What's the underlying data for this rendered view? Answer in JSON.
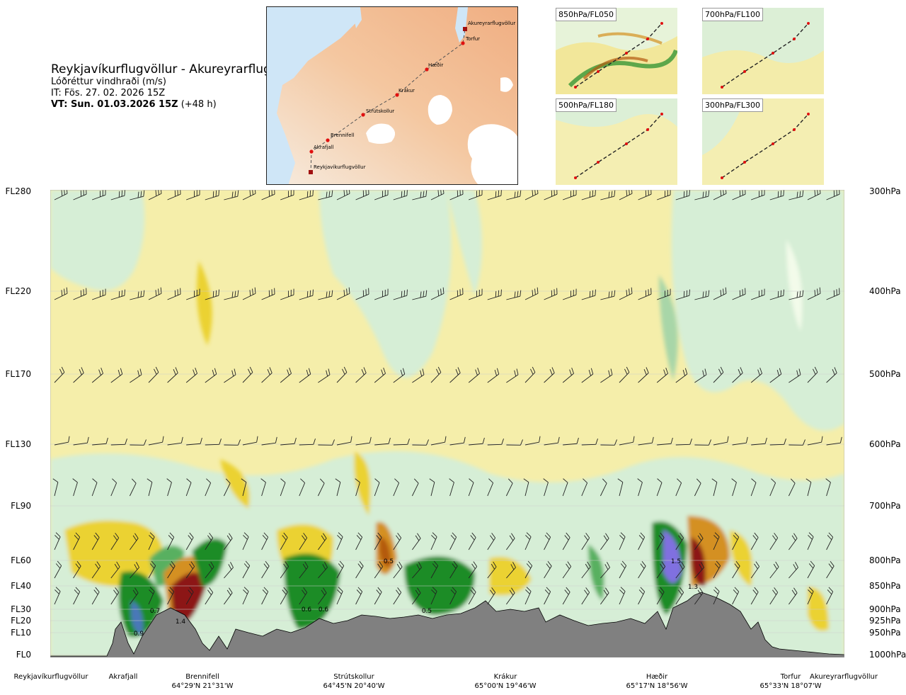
{
  "header": {
    "route": "Reykjavíkurflugvöllur - Akureyrarflugvöllur",
    "quantity": "Lóðréttur vindhraði (m/s)",
    "issued": "IT: Fös. 27. 02. 2026 15Z",
    "valid_bold": "VT: Sun. 01.03.2026 15Z",
    "valid_lead": " (+48 h)"
  },
  "map": {
    "waypoints": [
      "Akureyrarflugvöllur",
      "Torfur",
      "Hæðir",
      "Krákur",
      "Strútskollur",
      "Brennifell",
      "Akrafjall",
      "Reykjavíkurflugvöllur"
    ]
  },
  "mini_maps": [
    {
      "label": "850hPa/FL050"
    },
    {
      "label": "700hPa/FL100"
    },
    {
      "label": "500hPa/FL180"
    },
    {
      "label": "300hPa/FL300"
    }
  ],
  "levels_left": [
    "FL280",
    "FL220",
    "FL170",
    "FL130",
    "FL90",
    "FL60",
    "FL40",
    "FL30",
    "FL20",
    "FL10",
    "FL0"
  ],
  "levels_right": [
    "300hPa",
    "400hPa",
    "500hPa",
    "600hPa",
    "700hPa",
    "800hPa",
    "850hPa",
    "900hPa",
    "925hPa",
    "950hPa",
    "1000hPa"
  ],
  "places": [
    {
      "name": "Reykjavíkurflugvöllur",
      "coord": ""
    },
    {
      "name": "Akrafjall",
      "coord": ""
    },
    {
      "name": "Brennifell",
      "coord": "64°29'N 21°31'W"
    },
    {
      "name": "Strútskollur",
      "coord": "64°45'N 20°40'W"
    },
    {
      "name": "Krákur",
      "coord": "65°00'N 19°46'W"
    },
    {
      "name": "Hæðir",
      "coord": "65°17'N 18°56'W"
    },
    {
      "name": "Torfur",
      "coord": "65°33'N 18°07'W"
    },
    {
      "name": "Akureyrarflugvöllur",
      "coord": ""
    }
  ],
  "chart_data": {
    "type": "heatmap",
    "title": "Lóðréttur vindhraði (m/s)",
    "y_levels_hpa": [
      300,
      400,
      500,
      600,
      700,
      800,
      850,
      900,
      925,
      950,
      1000
    ],
    "y_levels_fl": [
      "FL280",
      "FL220",
      "FL170",
      "FL130",
      "FL90",
      "FL60",
      "FL40",
      "FL30",
      "FL20",
      "FL10",
      "FL0"
    ],
    "x_waypoints": [
      "Reykjavíkurflugvöllur",
      "Akrafjall",
      "Brennifell",
      "Strútskollur",
      "Krákur",
      "Hæðir",
      "Torfur",
      "Akureyrarflugvöllur"
    ],
    "contour_labels": [
      "0.9",
      "0.7",
      "1.4",
      "0.6",
      "0.6",
      "0.5",
      "0.5",
      "1.5",
      "1.3"
    ],
    "terrain_color": "#808080",
    "colors": {
      "strong_up_purple": "#8070e0",
      "up_blue": "#4a78b8",
      "up_dark_green": "#1e8c28",
      "up_green": "#58b060",
      "up_mid_green": "#a8d6a8",
      "weak_up_green": "#d6eed6",
      "near_zero": "#f3fbea",
      "weak_down_yellow": "#f5eeaa",
      "down_yellow": "#ebd230",
      "down_orange": "#d49020",
      "down_brown": "#b45a10",
      "strong_down_red": "#8c1414"
    }
  }
}
